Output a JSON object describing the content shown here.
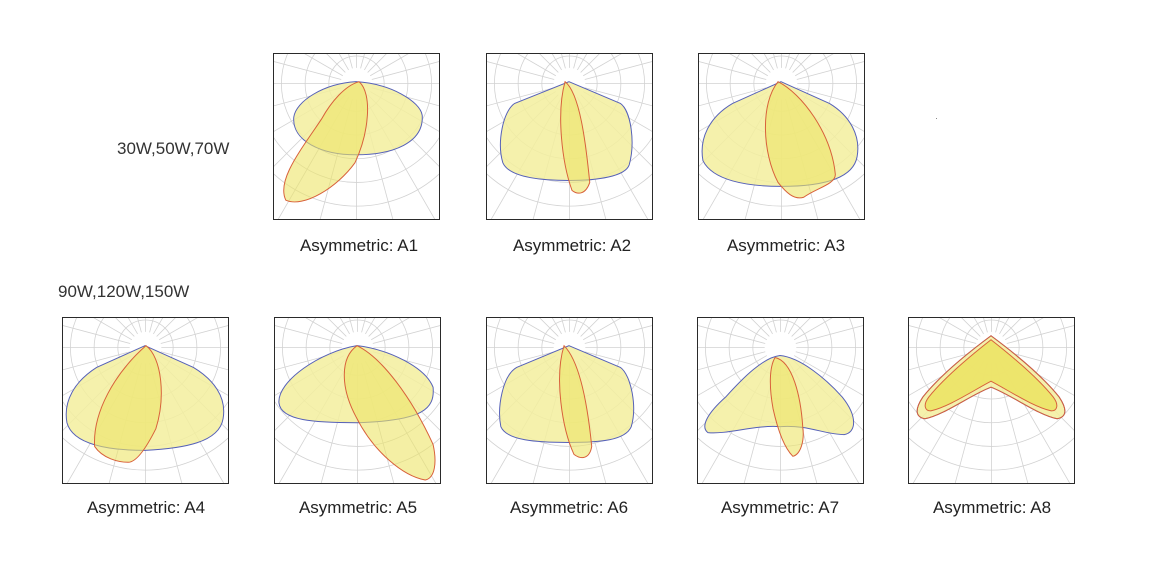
{
  "groups": [
    {
      "label": "30W,50W,70W"
    },
    {
      "label": "90W,120W,150W"
    }
  ],
  "diagrams": [
    {
      "caption": "Asymmetric: A1"
    },
    {
      "caption": "Asymmetric: A2"
    },
    {
      "caption": "Asymmetric: A3"
    },
    {
      "caption": "Asymmetric: A4"
    },
    {
      "caption": "Asymmetric: A5"
    },
    {
      "caption": "Asymmetric: A6"
    },
    {
      "caption": "Asymmetric: A7"
    },
    {
      "caption": "Asymmetric: A8"
    }
  ],
  "colors": {
    "fill": "#f3ef9e",
    "inner_fill": "#ece468",
    "outline_blue": "#5560b8",
    "outline_red": "#d8603a",
    "grid": "#d2d2d2",
    "frame": "#2a2a2a"
  }
}
